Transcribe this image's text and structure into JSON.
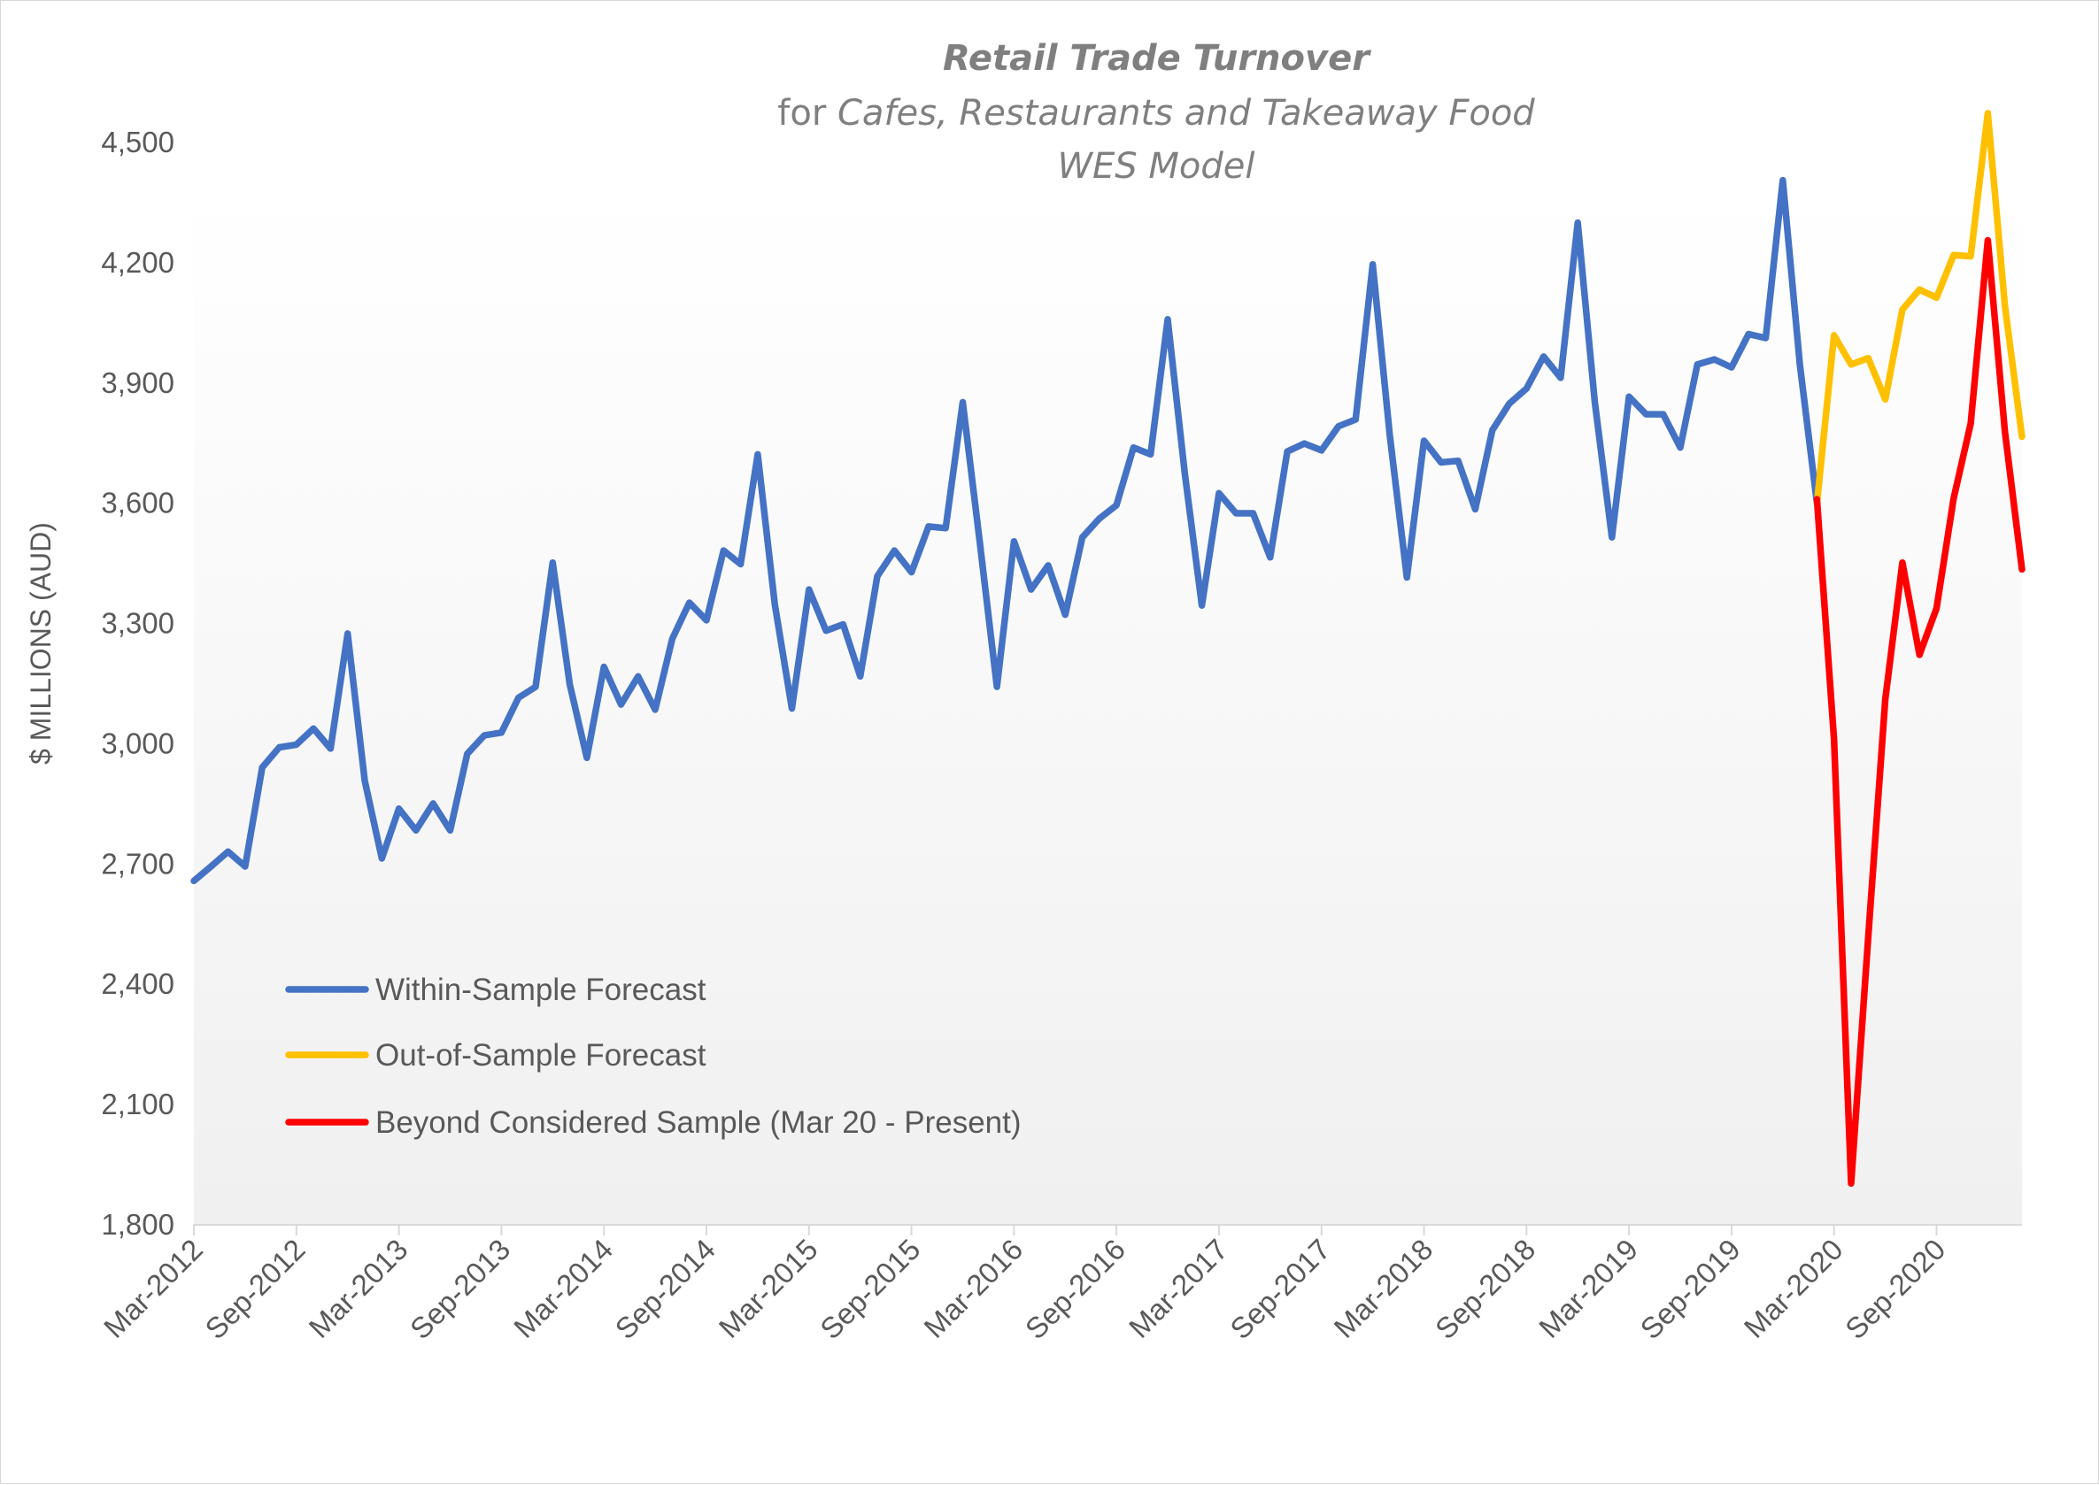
{
  "chart_data": {
    "type": "line",
    "title": "Retail Trade Turnover",
    "subtitle_prefix": "for ",
    "subtitle": "Cafes, Restaurants and Takeaway Food",
    "subtitle2": "WES Model",
    "ylabel": "$ MILLIONS (AUD)",
    "xlabel": "",
    "frequency": "monthly",
    "x_range": [
      "Mar-2012",
      "Feb-2021"
    ],
    "ylim": [
      1800,
      4500
    ],
    "yticks": [
      "1,800",
      "2,100",
      "2,400",
      "2,700",
      "3,000",
      "3,300",
      "3,600",
      "3,900",
      "4,200",
      "4,500"
    ],
    "xticks": [
      "Mar-2012",
      "Sep-2012",
      "Mar-2013",
      "Sep-2013",
      "Mar-2014",
      "Sep-2014",
      "Mar-2015",
      "Sep-2015",
      "Mar-2016",
      "Sep-2016",
      "Mar-2017",
      "Sep-2017",
      "Mar-2018",
      "Sep-2018",
      "Mar-2019",
      "Sep-2019",
      "Mar-2020",
      "Sep-2020"
    ],
    "grid": false,
    "legend_position": "bottom-left",
    "series": [
      {
        "name": "Within-Sample Forecast",
        "color": "#4472C4",
        "start": "Mar-2012",
        "values": [
          2658,
          2694,
          2731,
          2694,
          2941,
          2991,
          2998,
          3038,
          2988,
          3275,
          2908,
          2714,
          2838,
          2784,
          2851,
          2784,
          2975,
          3021,
          3028,
          3115,
          3142,
          3452,
          3148,
          2965,
          3192,
          3098,
          3168,
          3085,
          3262,
          3352,
          3308,
          3482,
          3448,
          3722,
          3348,
          3088,
          3385,
          3282,
          3298,
          3168,
          3418,
          3482,
          3428,
          3542,
          3538,
          3852,
          3502,
          3142,
          3505,
          3385,
          3445,
          3322,
          3515,
          3562,
          3595,
          3739,
          3722,
          4059,
          3675,
          3345,
          3625,
          3575,
          3575,
          3465,
          3729,
          3749,
          3732,
          3792,
          3809,
          4196,
          3769,
          3415,
          3756,
          3702,
          3706,
          3585,
          3782,
          3849,
          3886,
          3966,
          3913,
          4300,
          3852,
          3515,
          3866,
          3822,
          3822,
          3739,
          3946,
          3959,
          3939,
          4022,
          4012,
          4406,
          3946,
          3600
        ]
      },
      {
        "name": "Out-of-Sample Forecast",
        "color": "#FFC000",
        "start": "Feb-2020",
        "values": [
          3600,
          4019,
          3946,
          3962,
          3859,
          4083,
          4133,
          4113,
          4219,
          4216,
          4573,
          4093,
          3766
        ]
      },
      {
        "name": "Beyond Considered Sample (Mar 20 - Present)",
        "color": "#FF0000",
        "start": "Feb-2020",
        "values": [
          3610,
          3011,
          1903,
          2517,
          3111,
          3452,
          3222,
          3338,
          3612,
          3799,
          4256,
          3779,
          3435
        ]
      }
    ]
  }
}
